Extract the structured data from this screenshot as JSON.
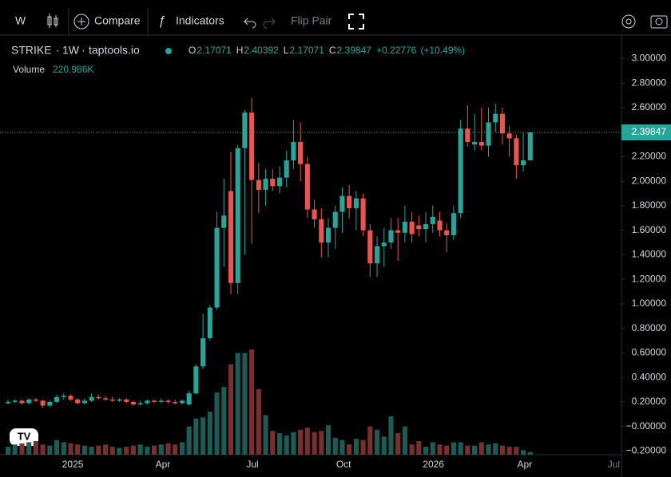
{
  "toolbar": {
    "interval": "W",
    "compare": "Compare",
    "indicators": "Indicators",
    "flip": "Flip Pair"
  },
  "legend": {
    "symbol": "STRIKE",
    "interval": "1W",
    "source": "taptools.io",
    "o": "O",
    "h": "H",
    "l": "L",
    "c": "C",
    "change": "+0.22776",
    "change_pct": "(+10.49%)",
    "volume_label": "Volume",
    "volume_value": "220.986K"
  },
  "chart_data": {
    "type": "candlestick",
    "up_color": "#26a69a",
    "down_color": "#ef5350",
    "up_volume_color": "#1d5c56",
    "down_volume_color": "#7a2f2f",
    "open": [
      0.19,
      0.2,
      0.21,
      0.19,
      0.22,
      0.21,
      0.17,
      0.2,
      0.24,
      0.25,
      0.22,
      0.19,
      0.21,
      0.24,
      0.23,
      0.22,
      0.21,
      0.22,
      0.2,
      0.18,
      0.19,
      0.21,
      0.2,
      0.21,
      0.2,
      0.19,
      0.18,
      0.27,
      0.49,
      0.72,
      0.97,
      1.62,
      1.92,
      1.17,
      2.27,
      2.56,
      2.01,
      1.93,
      2.02,
      1.96,
      2.03,
      2.17,
      2.32,
      2.14,
      1.77,
      1.69,
      1.5,
      1.62,
      1.75,
      1.88,
      1.78,
      1.86,
      1.6,
      1.33,
      1.47,
      1.5,
      1.6,
      1.58,
      1.67,
      1.64,
      1.61,
      1.65,
      1.68,
      1.6,
      1.56,
      1.74,
      2.43,
      2.3,
      2.32,
      2.29,
      2.48,
      2.55,
      2.39,
      2.35,
      2.13,
      2.17071
    ],
    "high": [
      0.22,
      0.22,
      0.22,
      0.23,
      0.23,
      0.22,
      0.21,
      0.26,
      0.27,
      0.26,
      0.23,
      0.23,
      0.27,
      0.26,
      0.25,
      0.24,
      0.23,
      0.23,
      0.21,
      0.21,
      0.22,
      0.22,
      0.23,
      0.22,
      0.22,
      0.22,
      0.29,
      0.51,
      0.92,
      0.99,
      1.75,
      2.02,
      2.24,
      2.3,
      2.58,
      2.68,
      2.15,
      2.1,
      2.1,
      2.12,
      2.25,
      2.5,
      2.48,
      2.2,
      1.85,
      1.78,
      1.7,
      1.8,
      1.95,
      1.97,
      1.92,
      1.9,
      1.65,
      1.55,
      1.62,
      1.7,
      1.7,
      1.8,
      1.75,
      1.72,
      1.75,
      1.8,
      1.75,
      1.66,
      1.8,
      2.5,
      2.62,
      2.55,
      2.6,
      2.6,
      2.63,
      2.6,
      2.45,
      2.38,
      2.4,
      2.40392
    ],
    "low": [
      0.18,
      0.19,
      0.18,
      0.18,
      0.2,
      0.15,
      0.16,
      0.19,
      0.22,
      0.21,
      0.18,
      0.18,
      0.2,
      0.22,
      0.21,
      0.2,
      0.2,
      0.19,
      0.17,
      0.17,
      0.18,
      0.19,
      0.19,
      0.19,
      0.18,
      0.18,
      0.17,
      0.26,
      0.47,
      0.7,
      0.95,
      1.3,
      1.08,
      1.08,
      1.4,
      1.49,
      1.74,
      1.8,
      1.92,
      1.9,
      1.95,
      2.1,
      2.0,
      1.7,
      1.62,
      1.38,
      1.38,
      1.45,
      1.58,
      1.7,
      1.6,
      1.55,
      1.22,
      1.22,
      1.3,
      1.45,
      1.35,
      1.5,
      1.5,
      1.55,
      1.5,
      1.58,
      1.55,
      1.42,
      1.52,
      1.7,
      2.28,
      2.25,
      2.25,
      2.2,
      2.4,
      2.3,
      2.2,
      2.02,
      2.08,
      2.17071
    ],
    "close": [
      0.2,
      0.21,
      0.19,
      0.22,
      0.21,
      0.17,
      0.2,
      0.24,
      0.25,
      0.22,
      0.19,
      0.21,
      0.24,
      0.23,
      0.22,
      0.21,
      0.22,
      0.2,
      0.18,
      0.19,
      0.21,
      0.2,
      0.21,
      0.2,
      0.19,
      0.21,
      0.27,
      0.49,
      0.72,
      0.97,
      1.62,
      1.72,
      1.17,
      2.27,
      2.56,
      2.01,
      1.93,
      2.02,
      1.96,
      2.03,
      2.17,
      2.32,
      2.14,
      1.77,
      1.69,
      1.5,
      1.62,
      1.75,
      1.88,
      1.78,
      1.86,
      1.6,
      1.33,
      1.47,
      1.5,
      1.6,
      1.58,
      1.67,
      1.57,
      1.61,
      1.65,
      1.71,
      1.6,
      1.56,
      1.74,
      2.43,
      2.32,
      2.32,
      2.29,
      2.48,
      2.55,
      2.39,
      2.35,
      2.13,
      2.17,
      2.39847
    ],
    "volume": [
      700,
      900,
      1000,
      1100,
      1200,
      900,
      800,
      1300,
      1100,
      1000,
      900,
      800,
      700,
      800,
      900,
      700,
      600,
      700,
      800,
      900,
      700,
      800,
      900,
      1000,
      900,
      1100,
      2500,
      3200,
      3300,
      3800,
      5500,
      6000,
      8000,
      9000,
      9000,
      9300,
      5800,
      3500,
      2100,
      1900,
      1700,
      2000,
      2200,
      2400,
      2000,
      2100,
      2600,
      1500,
      1300,
      900,
      1400,
      1300,
      2500,
      2200,
      1600,
      3400,
      1900,
      2500,
      900,
      1200,
      700,
      1100,
      900,
      800,
      1100,
      1100,
      800,
      800,
      1100,
      900,
      1000,
      800,
      700,
      700,
      400,
      220.986
    ],
    "volume_lim": [
      0,
      12000
    ],
    "xlim": [
      -1.15,
      88.1
    ],
    "xticks": [
      {
        "value": 9.3,
        "label": "2025"
      },
      {
        "value": 22.25,
        "label": "Apr"
      },
      {
        "value": 35.1,
        "label": "Jul"
      },
      {
        "value": 48.2,
        "label": "Oct"
      },
      {
        "value": 61.1,
        "label": "2026"
      },
      {
        "value": 74.2,
        "label": "Apr"
      },
      {
        "value": 87.0,
        "label": "Jul"
      }
    ],
    "ylim": [
      -0.23,
      3.14
    ],
    "yticks": [
      {
        "value": 3.0,
        "label": "3.00000"
      },
      {
        "value": 2.8,
        "label": "2.80000"
      },
      {
        "value": 2.6,
        "label": "2.60000"
      },
      {
        "value": 2.2,
        "label": "2.20000"
      },
      {
        "value": 2.0,
        "label": "2.00000"
      },
      {
        "value": 1.8,
        "label": "1.80000"
      },
      {
        "value": 1.6,
        "label": "1.60000"
      },
      {
        "value": 1.4,
        "label": "1.40000"
      },
      {
        "value": 1.2,
        "label": "1.20000"
      },
      {
        "value": 1.0,
        "label": "1.00000"
      },
      {
        "value": 0.8,
        "label": "0.80000"
      },
      {
        "value": 0.6,
        "label": "0.60000"
      },
      {
        "value": 0.4,
        "label": "0.40000"
      },
      {
        "value": 0.2,
        "label": "0.20000"
      },
      {
        "value": 0,
        "label": "−0.00000"
      },
      {
        "value": -0.2,
        "label": "−0.20000"
      }
    ]
  }
}
